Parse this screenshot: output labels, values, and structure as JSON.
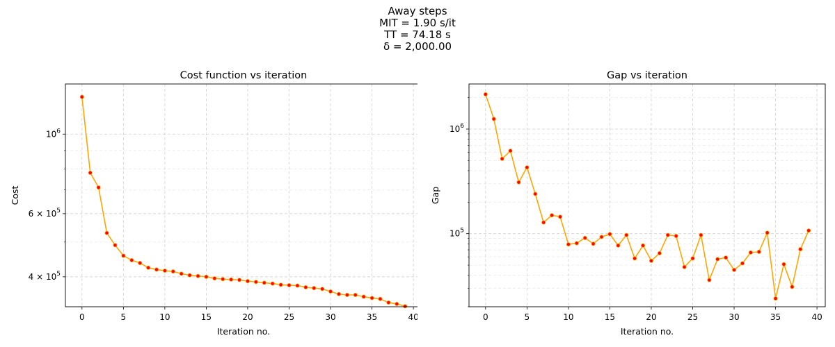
{
  "figure": {
    "suptitle_lines": [
      "Away steps",
      "MIT = 1.90 s/it",
      "TT = 74.18 s",
      "δ = 2,000.00"
    ]
  },
  "chart_data": [
    {
      "type": "line",
      "title": "Cost function vs iteration",
      "xlabel": "Iteration no.",
      "ylabel": "Cost",
      "yscale": "log",
      "xlim": [
        -2,
        41
      ],
      "ylim": [
        330000,
        1380000
      ],
      "xticks": [
        0,
        5,
        10,
        15,
        20,
        25,
        30,
        35,
        40
      ],
      "ytick_labels": [
        {
          "value": 1000000,
          "base": "10",
          "exp": "6"
        },
        {
          "value": 600000,
          "base": "6 × 10",
          "exp": "5"
        },
        {
          "value": 400000,
          "base": "4 × 10",
          "exp": "5"
        }
      ],
      "grid": true,
      "line_color": "#ffa500",
      "marker_color": "#ff0000",
      "x": [
        0,
        1,
        2,
        3,
        4,
        5,
        6,
        7,
        8,
        9,
        10,
        11,
        12,
        13,
        14,
        15,
        16,
        17,
        18,
        19,
        20,
        21,
        22,
        23,
        24,
        25,
        26,
        27,
        28,
        29,
        30,
        31,
        32,
        33,
        34,
        35,
        36,
        37,
        38,
        39
      ],
      "y": [
        1270000,
        780000,
        710000,
        530000,
        490000,
        458000,
        445000,
        437000,
        424000,
        419000,
        416000,
        414000,
        408000,
        404000,
        402000,
        400000,
        396000,
        394000,
        393000,
        392000,
        389000,
        387000,
        385000,
        383000,
        380000,
        379000,
        378000,
        374000,
        372000,
        370000,
        364000,
        358000,
        356000,
        356000,
        352000,
        349000,
        347000,
        339000,
        336000,
        331000
      ]
    },
    {
      "type": "line",
      "title": "Gap vs iteration",
      "xlabel": "Iteration no.",
      "ylabel": "Gap",
      "yscale": "log",
      "xlim": [
        -2,
        41
      ],
      "ylim": [
        20000,
        2700000
      ],
      "xticks": [
        0,
        5,
        10,
        15,
        20,
        25,
        30,
        35,
        40
      ],
      "ytick_labels": [
        {
          "value": 1000000,
          "base": "10",
          "exp": "6"
        },
        {
          "value": 100000,
          "base": "10",
          "exp": "5"
        }
      ],
      "grid": true,
      "line_color": "#ffa500",
      "marker_color": "#ff0000",
      "x": [
        0,
        1,
        2,
        3,
        4,
        5,
        6,
        7,
        8,
        9,
        10,
        11,
        12,
        13,
        14,
        15,
        16,
        17,
        18,
        19,
        20,
        21,
        22,
        23,
        24,
        25,
        26,
        27,
        28,
        29,
        30,
        31,
        32,
        33,
        34,
        35,
        36,
        37,
        38,
        39
      ],
      "y": [
        2150000,
        1250000,
        520000,
        620000,
        310000,
        430000,
        240000,
        128000,
        150000,
        145000,
        79000,
        81000,
        91000,
        80000,
        93000,
        99000,
        77000,
        97000,
        58000,
        77000,
        55000,
        65000,
        97000,
        95000,
        48000,
        58000,
        97000,
        36000,
        57000,
        59000,
        45000,
        52000,
        66000,
        67000,
        102000,
        24000,
        51000,
        31000,
        71000,
        107000
      ]
    }
  ]
}
